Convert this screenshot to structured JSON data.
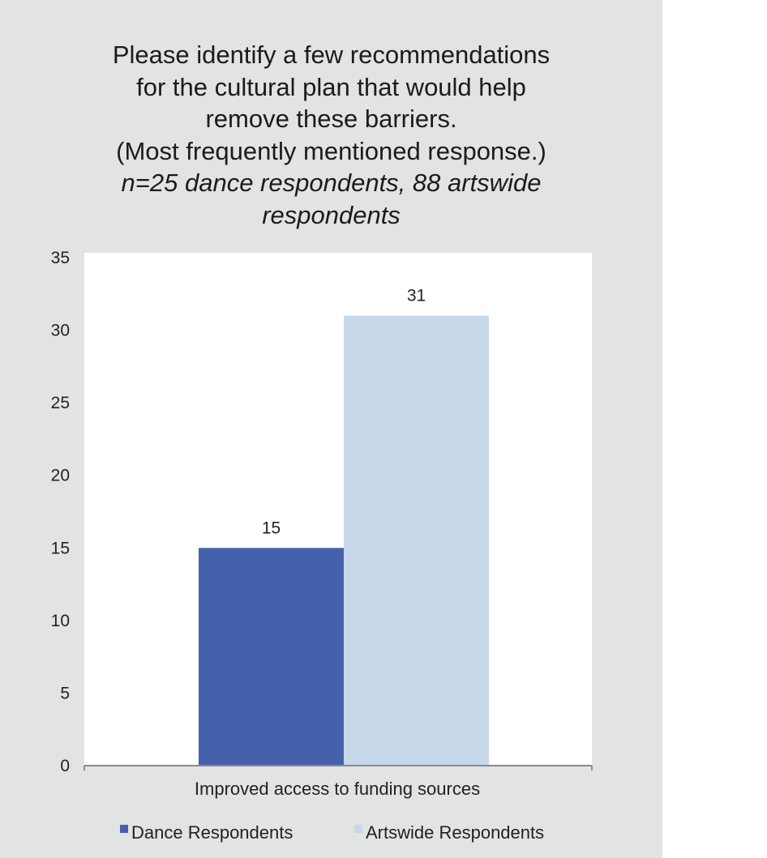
{
  "title": {
    "lines": [
      "Please identify a few recommendations",
      "for the cultural plan that would help",
      "remove these barriers.",
      "(Most frequently mentioned response.)"
    ],
    "italic_lines": [
      "n=25 dance respondents, 88 artswide",
      "respondents"
    ]
  },
  "chart_data": {
    "type": "bar",
    "title": "Please identify a few recommendations for the cultural plan that would help remove these barriers. (Most frequently mentioned response.)",
    "subtitle": "n=25 dance respondents, 88 artswide respondents",
    "categories": [
      "Improved access to funding sources"
    ],
    "series": [
      {
        "name": "Dance Respondents",
        "values": [
          15
        ],
        "color": "#4661ab"
      },
      {
        "name": "Artswide Respondents",
        "values": [
          31
        ],
        "color": "#c7d8ea"
      }
    ],
    "ylim": [
      0,
      35
    ],
    "yticks": [
      0,
      5,
      10,
      15,
      20,
      25,
      30,
      35
    ],
    "xlabel": "",
    "ylabel": "",
    "grid": false,
    "legend": "bottom",
    "colors": {
      "panel": "#e2e3e3",
      "plot": "#ffffff",
      "axis": "#8a8a8a"
    }
  }
}
